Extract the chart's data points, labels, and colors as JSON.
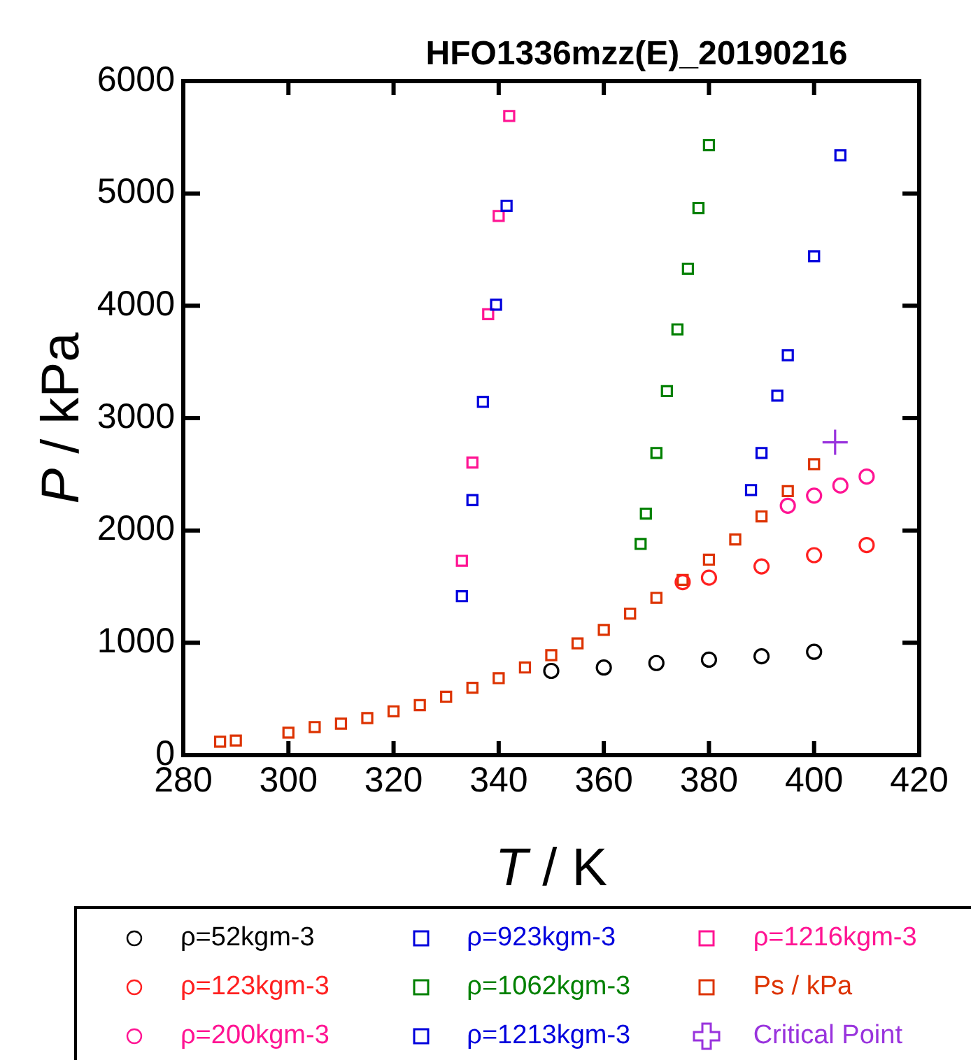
{
  "chart_data": {
    "type": "scatter",
    "title": "HFO1336mzz(E)_20190216",
    "xlabel": "T / K",
    "ylabel": "P / kPa",
    "xlim": [
      280,
      420
    ],
    "xticks": [
      280,
      300,
      320,
      340,
      360,
      380,
      400,
      420
    ],
    "ylim": [
      0,
      6000
    ],
    "yticks": [
      0,
      1000,
      2000,
      3000,
      4000,
      5000,
      6000
    ],
    "grid": false,
    "legend": "bottom",
    "series": [
      {
        "name": "ρ=52kgm-3",
        "color": "#000000",
        "marker": "circle",
        "x": [
          350,
          360,
          370,
          380,
          390,
          400
        ],
        "values": [
          750,
          780,
          820,
          850,
          880,
          920
        ]
      },
      {
        "name": "ρ=123kgm-3",
        "color": "#ff2020",
        "marker": "circle",
        "x": [
          375,
          380,
          390,
          400,
          410
        ],
        "values": [
          1540,
          1580,
          1680,
          1780,
          1870
        ]
      },
      {
        "name": "ρ=200kgm-3",
        "color": "#ff1493",
        "marker": "circle",
        "x": [
          395,
          400,
          405,
          410
        ],
        "values": [
          2220,
          2310,
          2400,
          2480
        ]
      },
      {
        "name": "ρ=923kgm-3",
        "color": "#0000dd",
        "marker": "square",
        "x": [
          388,
          390,
          393,
          395,
          400,
          405
        ],
        "values": [
          2360,
          2690,
          3200,
          3560,
          4440,
          5340
        ]
      },
      {
        "name": "ρ=1062kgm-3",
        "color": "#008000",
        "marker": "square",
        "x": [
          367,
          368,
          370,
          372,
          374,
          376,
          378,
          380
        ],
        "values": [
          1880,
          2150,
          2690,
          3240,
          3790,
          4330,
          4870,
          5430
        ]
      },
      {
        "name": "ρ=1213kgm-3",
        "color": "#0000dd",
        "marker": "square",
        "x": [
          333,
          335,
          337,
          339.5,
          341.5
        ],
        "values": [
          1415,
          2270,
          3145,
          4010,
          4890
        ]
      },
      {
        "name": "ρ=1216kgm-3",
        "color": "#ff1493",
        "marker": "square",
        "x": [
          333,
          335,
          338,
          340,
          342
        ],
        "values": [
          1730,
          2605,
          3925,
          4800,
          5690
        ]
      },
      {
        "name": "Ps / kPa",
        "color": "#dd3300",
        "marker": "square",
        "x": [
          287,
          290,
          300,
          305,
          310,
          315,
          320,
          325,
          330,
          335,
          340,
          345,
          350,
          355,
          360,
          365,
          370,
          375,
          380,
          385,
          390,
          395,
          400
        ],
        "values": [
          120,
          130,
          200,
          250,
          280,
          330,
          390,
          445,
          520,
          600,
          685,
          780,
          890,
          995,
          1115,
          1260,
          1400,
          1560,
          1740,
          1920,
          2125,
          2350,
          2590
        ]
      },
      {
        "name": "Critical Point",
        "color": "#9933dd",
        "marker": "cross",
        "x": [
          404
        ],
        "values": [
          2785
        ]
      }
    ]
  }
}
